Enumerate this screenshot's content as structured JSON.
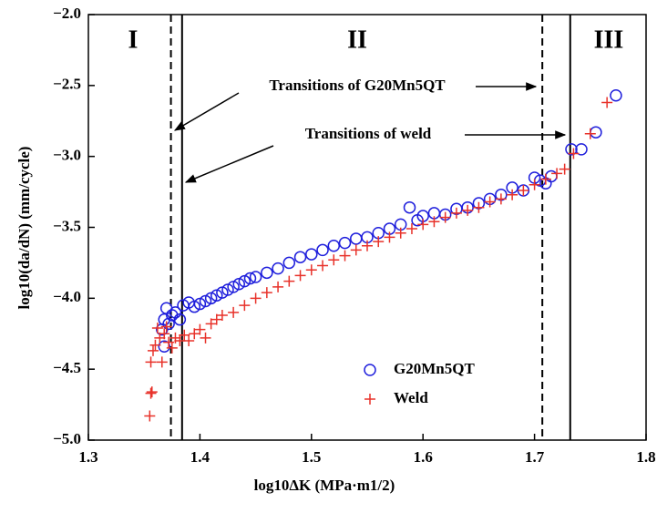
{
  "chart_data": {
    "type": "scatter",
    "xlabel": "log10ΔK (MPa·m1/2)",
    "ylabel": "log10(da/dN) (mm/cycle)",
    "xlim": [
      1.3,
      1.8
    ],
    "xticks": [
      1.3,
      1.4,
      1.5,
      1.6,
      1.7,
      1.8
    ],
    "ylim": [
      -5.0,
      -2.0
    ],
    "yticks": [
      {
        "value": -5.0,
        "label": "−5.0"
      },
      {
        "value": -4.5,
        "label": "−4.5"
      },
      {
        "value": -4.0,
        "label": "−4.0"
      },
      {
        "value": -3.5,
        "label": "−3.5"
      },
      {
        "value": -3.0,
        "label": "−3.0"
      },
      {
        "value": -2.5,
        "label": "−2.5"
      },
      {
        "value": -2.0,
        "label": "−2.0"
      }
    ],
    "vlines": [
      {
        "x": 1.374,
        "style": "dashed"
      },
      {
        "x": 1.384,
        "style": "solid"
      },
      {
        "x": 1.707,
        "style": "dashed"
      },
      {
        "x": 1.732,
        "style": "solid"
      }
    ],
    "regions": [
      "I",
      "II",
      "III"
    ],
    "annotations": [
      "Transitions of G20Mn5QT",
      "Transitions of weld"
    ],
    "series": [
      {
        "name": "G20Mn5QT",
        "color": "#1f1fdc",
        "marker": "circle",
        "x": [
          1.368,
          1.366,
          1.368,
          1.37,
          1.372,
          1.375,
          1.378,
          1.382,
          1.385,
          1.39,
          1.395,
          1.4,
          1.405,
          1.41,
          1.415,
          1.42,
          1.425,
          1.43,
          1.435,
          1.44,
          1.445,
          1.45,
          1.46,
          1.47,
          1.48,
          1.49,
          1.5,
          1.51,
          1.52,
          1.53,
          1.54,
          1.55,
          1.56,
          1.57,
          1.58,
          1.588,
          1.595,
          1.6,
          1.61,
          1.62,
          1.63,
          1.64,
          1.65,
          1.66,
          1.67,
          1.68,
          1.69,
          1.7,
          1.705,
          1.71,
          1.715,
          1.733,
          1.742,
          1.755,
          1.773
        ],
        "y": [
          -4.34,
          -4.22,
          -4.15,
          -4.07,
          -4.18,
          -4.12,
          -4.1,
          -4.15,
          -4.05,
          -4.03,
          -4.06,
          -4.04,
          -4.02,
          -4.0,
          -3.98,
          -3.96,
          -3.94,
          -3.92,
          -3.9,
          -3.88,
          -3.86,
          -3.85,
          -3.82,
          -3.79,
          -3.75,
          -3.71,
          -3.69,
          -3.66,
          -3.63,
          -3.61,
          -3.58,
          -3.57,
          -3.54,
          -3.51,
          -3.48,
          -3.36,
          -3.45,
          -3.42,
          -3.4,
          -3.41,
          -3.37,
          -3.36,
          -3.33,
          -3.3,
          -3.27,
          -3.22,
          -3.24,
          -3.15,
          -3.17,
          -3.19,
          -3.14,
          -2.95,
          -2.95,
          -2.83,
          -2.57
        ]
      },
      {
        "name": "Weld",
        "color": "#e8322a",
        "marker": "plus",
        "x": [
          1.355,
          1.356,
          1.357,
          1.356,
          1.358,
          1.36,
          1.362,
          1.364,
          1.366,
          1.368,
          1.37,
          1.372,
          1.375,
          1.378,
          1.382,
          1.386,
          1.39,
          1.395,
          1.4,
          1.405,
          1.41,
          1.415,
          1.42,
          1.43,
          1.44,
          1.45,
          1.46,
          1.47,
          1.48,
          1.49,
          1.5,
          1.51,
          1.52,
          1.53,
          1.54,
          1.55,
          1.56,
          1.57,
          1.58,
          1.59,
          1.6,
          1.61,
          1.62,
          1.63,
          1.64,
          1.65,
          1.66,
          1.67,
          1.68,
          1.69,
          1.7,
          1.71,
          1.72,
          1.727,
          1.735,
          1.75,
          1.765
        ],
        "y": [
          -4.83,
          -4.67,
          -4.66,
          -4.45,
          -4.37,
          -4.33,
          -4.21,
          -4.28,
          -4.45,
          -4.25,
          -4.2,
          -4.31,
          -4.35,
          -4.28,
          -4.3,
          -4.26,
          -4.3,
          -4.25,
          -4.22,
          -4.28,
          -4.18,
          -4.15,
          -4.12,
          -4.1,
          -4.05,
          -4.0,
          -3.96,
          -3.92,
          -3.88,
          -3.84,
          -3.8,
          -3.77,
          -3.73,
          -3.7,
          -3.66,
          -3.63,
          -3.6,
          -3.57,
          -3.54,
          -3.51,
          -3.48,
          -3.46,
          -3.43,
          -3.4,
          -3.38,
          -3.36,
          -3.32,
          -3.3,
          -3.27,
          -3.24,
          -3.2,
          -3.16,
          -3.12,
          -3.09,
          -2.98,
          -2.84,
          -2.62
        ]
      }
    ]
  }
}
